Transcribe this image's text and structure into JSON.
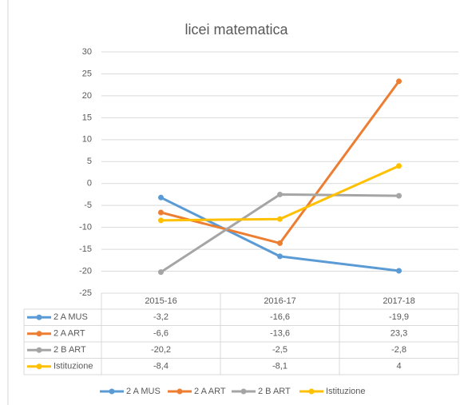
{
  "chart_data": {
    "type": "line",
    "title": "licei matematica",
    "categories": [
      "2015-16",
      "2016-17",
      "2017-18"
    ],
    "series": [
      {
        "name": "2 A MUS",
        "color": "#5b9bd5",
        "values": [
          -3.2,
          -16.6,
          -19.9
        ],
        "value_labels": [
          "-3,2",
          "-16,6",
          "-19,9"
        ]
      },
      {
        "name": "2 A ART",
        "color": "#ed7d31",
        "values": [
          -6.6,
          -13.6,
          23.3
        ],
        "value_labels": [
          "-6,6",
          "-13,6",
          "23,3"
        ]
      },
      {
        "name": "2 B ART",
        "color": "#a5a5a5",
        "values": [
          -20.2,
          -2.5,
          -2.8
        ],
        "value_labels": [
          "-20,2",
          "-2,5",
          "-2,8"
        ]
      },
      {
        "name": "Istituzione",
        "color": "#ffc000",
        "values": [
          -8.4,
          -8.1,
          4
        ],
        "value_labels": [
          "-8,4",
          "-8,1",
          "4"
        ]
      }
    ],
    "ylim": [
      -25,
      30
    ],
    "yticks": [
      -25,
      -20,
      -15,
      -10,
      -5,
      0,
      5,
      10,
      15,
      20,
      25,
      30
    ],
    "grid": true,
    "legend": "bottom"
  }
}
